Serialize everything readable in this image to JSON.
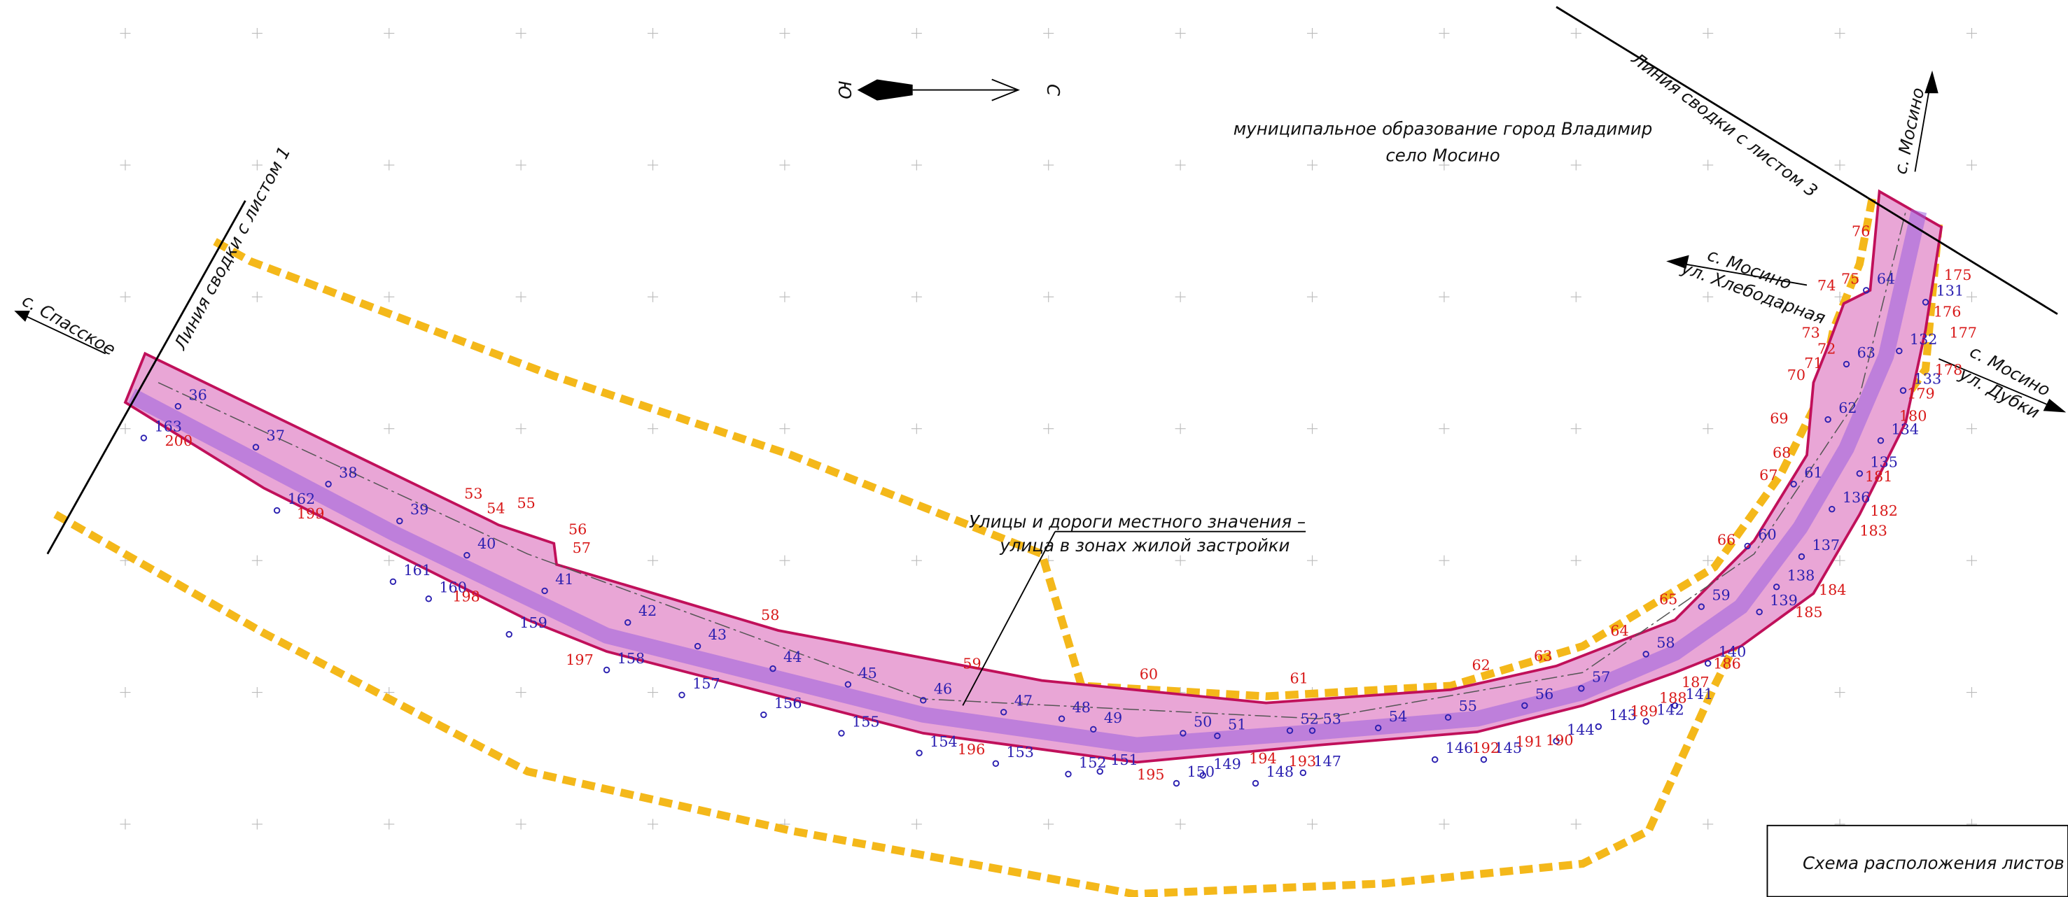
{
  "header": {
    "title": "муниципальное образование город Владимир",
    "subtitle": "село Мосино"
  },
  "north_arrow": {
    "south": "Ю",
    "north": "С"
  },
  "labels": {
    "sheet_line_1": "Линия сводки с листом 1",
    "sheet_line_3": "Линия сводки с листом 3",
    "spasskoe": "с. Спасское",
    "mosino_north": "с. Мосино",
    "mosino_khleb": [
      "с. Мосино",
      "ул. Хлебодарная"
    ],
    "mosino_dubki": [
      "с. Мосино",
      "ул. Дубки"
    ],
    "street_callout": [
      "Улицы и дороги местного значения –",
      "улица в зонах жилой застройки"
    ],
    "legend_box": "Схема расположения листов"
  },
  "points": {
    "axis": [
      "36",
      "37",
      "38",
      "39",
      "40",
      "41",
      "42",
      "43",
      "44",
      "45",
      "46",
      "47",
      "48",
      "49",
      "50",
      "51",
      "52",
      "53",
      "54",
      "55",
      "56",
      "57",
      "58",
      "59",
      "60",
      "61",
      "62",
      "63",
      "64",
      "131",
      "132",
      "133",
      "134",
      "135",
      "136",
      "137",
      "138",
      "139",
      "140",
      "141",
      "142",
      "143",
      "144",
      "145",
      "146",
      "147",
      "148",
      "149",
      "150",
      "151",
      "152",
      "153",
      "154",
      "155",
      "156",
      "157",
      "158",
      "159",
      "160",
      "161",
      "162",
      "163"
    ],
    "boundary": [
      "53",
      "54",
      "55",
      "56",
      "57",
      "58",
      "59",
      "60",
      "61",
      "62",
      "63",
      "64",
      "65",
      "66",
      "67",
      "68",
      "69",
      "70",
      "71",
      "72",
      "73",
      "74",
      "75",
      "76",
      "175",
      "176",
      "177",
      "178",
      "179",
      "180",
      "181",
      "182",
      "183",
      "184",
      "185",
      "186",
      "187",
      "188",
      "189",
      "190",
      "191",
      "192",
      "193",
      "194",
      "195",
      "196",
      "197",
      "198",
      "199",
      "200"
    ]
  }
}
